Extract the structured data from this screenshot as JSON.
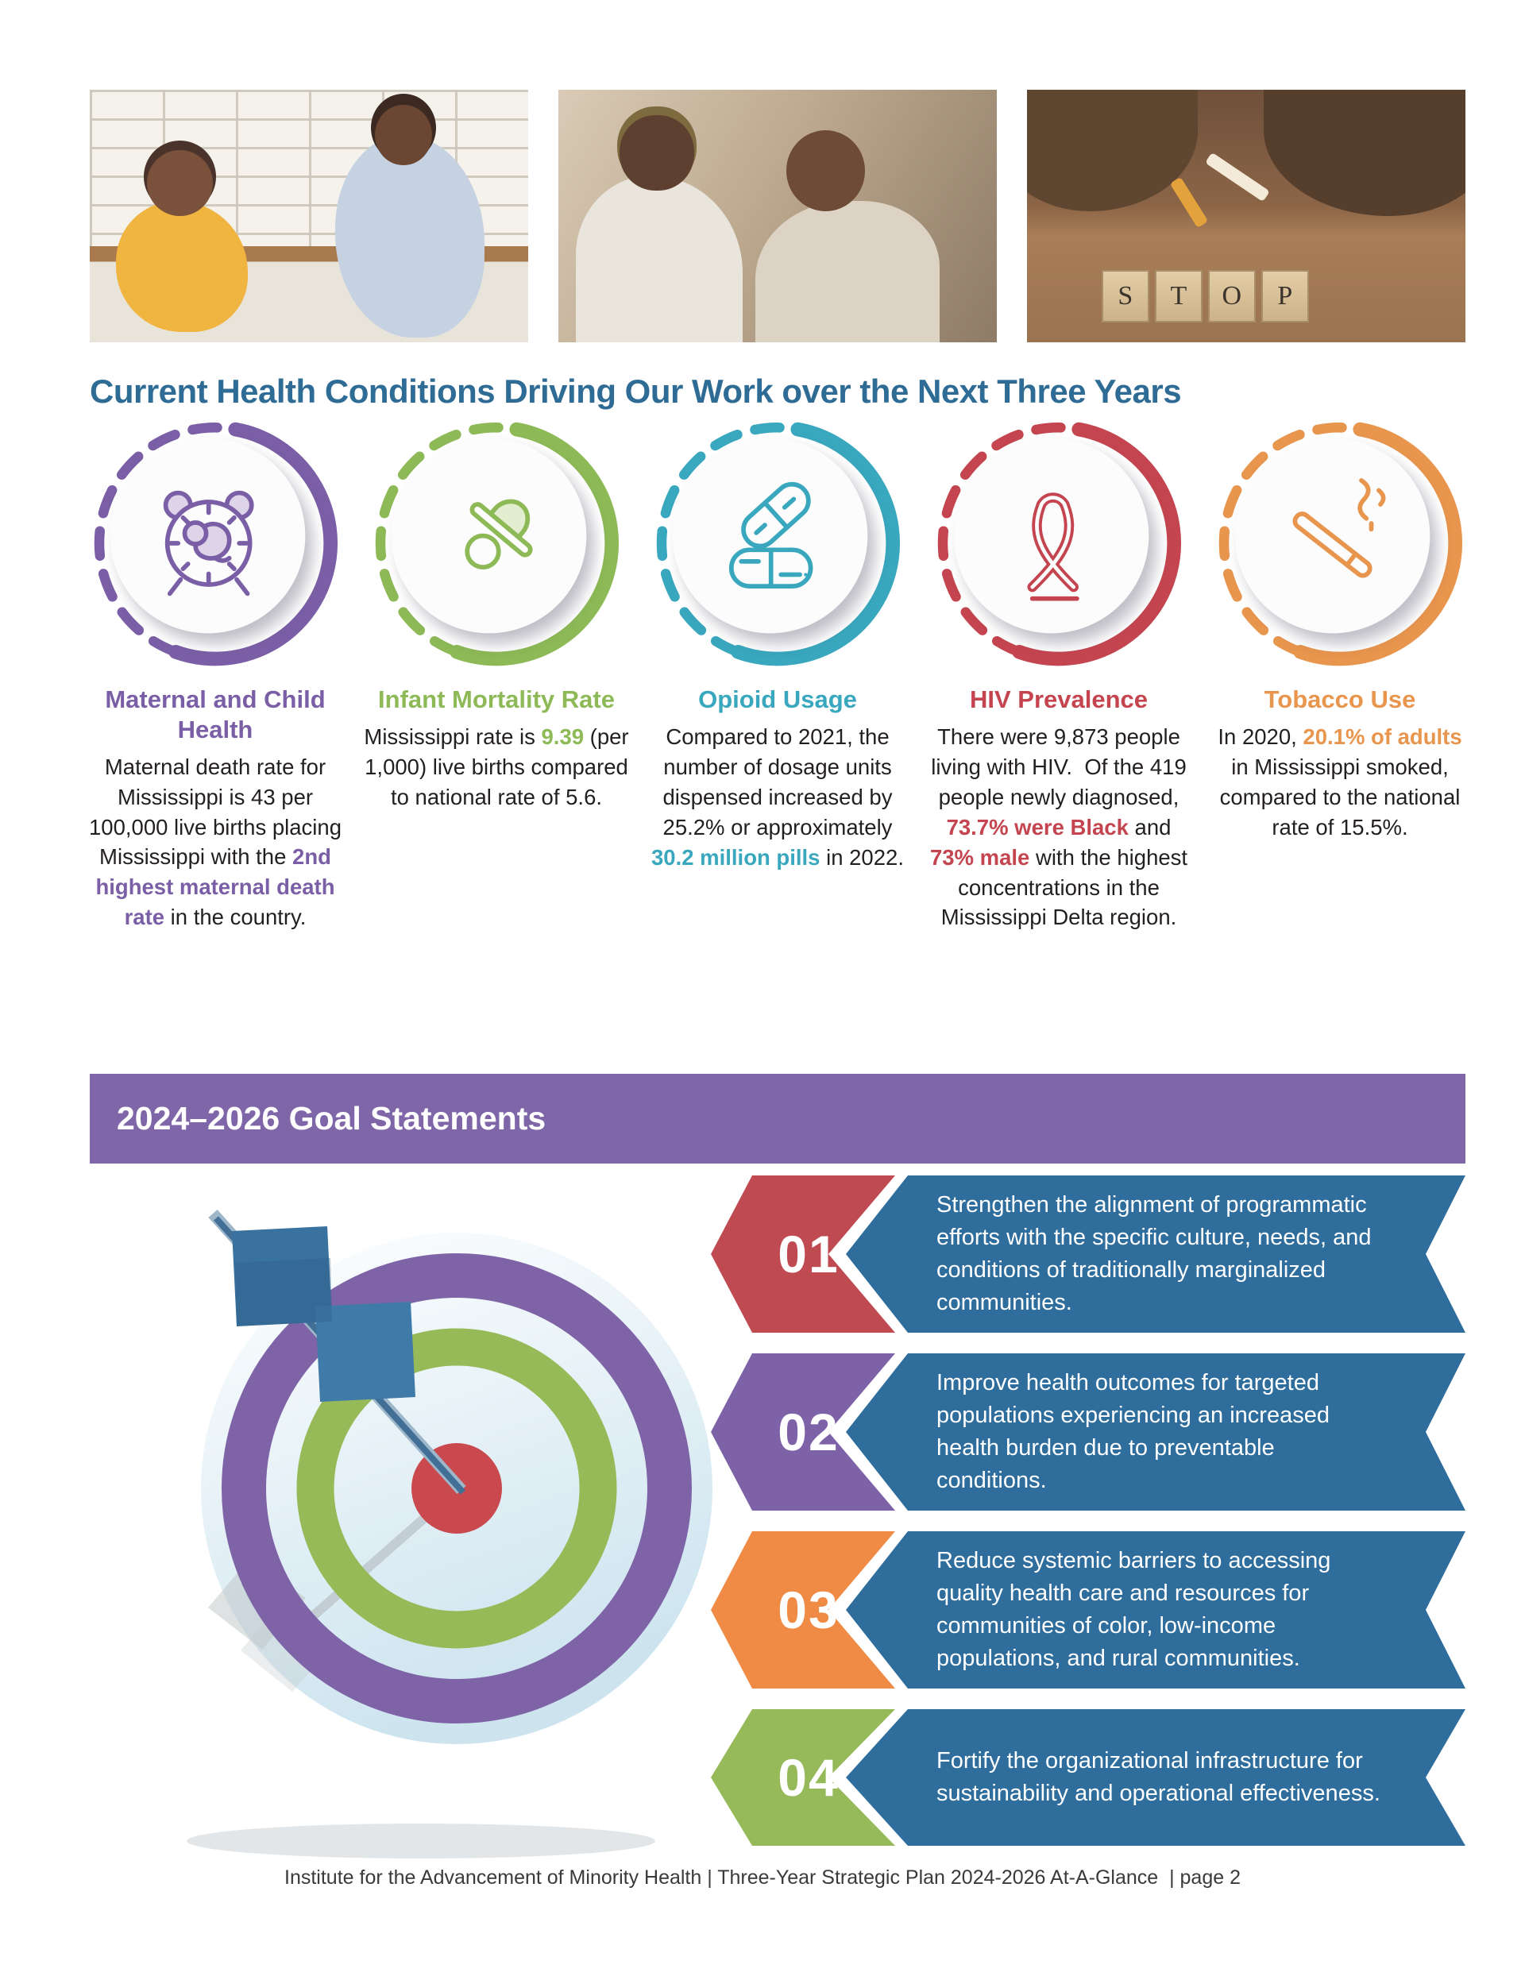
{
  "page": {
    "heading": "Current Health Conditions Driving Our Work over the Next Three Years",
    "heading_color": "#2F6C95",
    "footer": "Institute for the Advancement of Minority Health | Three-Year Strategic Plan 2024-2026 At-A-Glance  | page 2"
  },
  "photos": [
    {
      "name": "mother-and-child-photo"
    },
    {
      "name": "young-couple-photo"
    },
    {
      "name": "breaking-cigarette-photo",
      "blocks": [
        "S",
        "T",
        "O",
        "P"
      ]
    }
  ],
  "conditions": [
    {
      "title": "Maternal and Child Health",
      "color": "#7B5FA6",
      "tint": "#DDD4E9",
      "icon": "baby-clock-icon",
      "body": [
        [
          "Maternal death rate for Mississippi is 43 per 100,000 live births placing Mississippi with the ",
          false
        ],
        [
          "2nd highest maternal death rate",
          true
        ],
        [
          " in the country.",
          false
        ]
      ]
    },
    {
      "title": "Infant Mortality Rate",
      "color": "#8DB956",
      "tint": "#E3EDCF",
      "icon": "pacifier-icon",
      "body": [
        [
          "Mississippi rate is ",
          false
        ],
        [
          "9.39",
          true
        ],
        [
          " (per 1,000) live births compared to national rate of 5.6.",
          false
        ]
      ]
    },
    {
      "title": "Opioid Usage",
      "color": "#39A7BE",
      "tint": "#D7EDF2",
      "icon": "pills-icon",
      "body": [
        [
          "Compared to 2021, the number of dosage units dispensed increased by 25.2% or approximately ",
          false
        ],
        [
          "30.2 million pills",
          true
        ],
        [
          " in 2022.",
          false
        ]
      ]
    },
    {
      "title": "HIV Prevalence",
      "color": "#C4454F",
      "tint": "#F3D7D9",
      "icon": "awareness-ribbon-icon",
      "body": [
        [
          "There were 9,873 people living with HIV.  Of the 419 people newly diagnosed, ",
          false
        ],
        [
          "73.7% were Black",
          true
        ],
        [
          " and ",
          false
        ],
        [
          "73% male",
          true
        ],
        [
          " with the highest concentrations in the Mississippi Delta region.",
          false
        ]
      ]
    },
    {
      "title": "Tobacco Use",
      "color": "#E8954D",
      "tint": "#FBE7D3",
      "icon": "cigarette-icon",
      "body": [
        [
          "In 2020, ",
          false
        ],
        [
          "20.1% of adults",
          true
        ],
        [
          " in Mississippi smoked, compared to the national rate of 15.5%.",
          false
        ]
      ]
    }
  ],
  "goals": {
    "banner_title": "2024–2026 Goal Statements",
    "banner_color": "#7F66A8",
    "statement_bg": "#2E6D9C",
    "items": [
      {
        "number": "01",
        "color": "#C04A52",
        "text": "Strengthen the alignment of programmatic efforts with the specific culture, needs, and conditions of traditionally marginalized communities."
      },
      {
        "number": "02",
        "color": "#7E62A8",
        "text": "Improve health outcomes for targeted populations experiencing an increased health burden due to preventable conditions."
      },
      {
        "number": "03",
        "color": "#EF8B45",
        "text": "Reduce systemic barriers to accessing quality health care and resources for communities of color, low-income populations, and rural communities."
      },
      {
        "number": "04",
        "color": "#96BA5A",
        "text": "Fortify the organizational infrastructure for sustainability and operational effectiveness."
      }
    ]
  }
}
